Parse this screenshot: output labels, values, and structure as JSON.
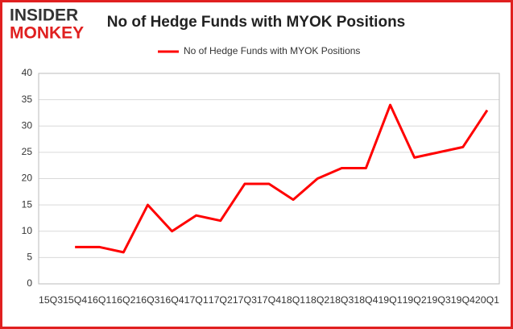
{
  "logo": {
    "top": "INSIDER",
    "bottom": "MONKEY"
  },
  "chart_data": {
    "type": "line",
    "title": "No of Hedge Funds with MYOK Positions",
    "categories": [
      "15Q3",
      "15Q4",
      "16Q1",
      "16Q2",
      "16Q3",
      "16Q4",
      "17Q1",
      "17Q2",
      "17Q3",
      "17Q4",
      "18Q1",
      "18Q2",
      "18Q3",
      "18Q4",
      "19Q1",
      "19Q2",
      "19Q3",
      "19Q4",
      "20Q1"
    ],
    "series": [
      {
        "name": "No of Hedge Funds with MYOK Positions",
        "color": "#ff0000",
        "values": [
          null,
          7,
          7,
          6,
          15,
          10,
          13,
          12,
          19,
          19,
          16,
          20,
          22,
          22,
          34,
          24,
          25,
          26,
          33
        ]
      }
    ],
    "ylim": [
      0,
      40
    ],
    "yticks": [
      0,
      5,
      10,
      15,
      20,
      25,
      30,
      35,
      40
    ],
    "grid": true,
    "legend": "top"
  }
}
